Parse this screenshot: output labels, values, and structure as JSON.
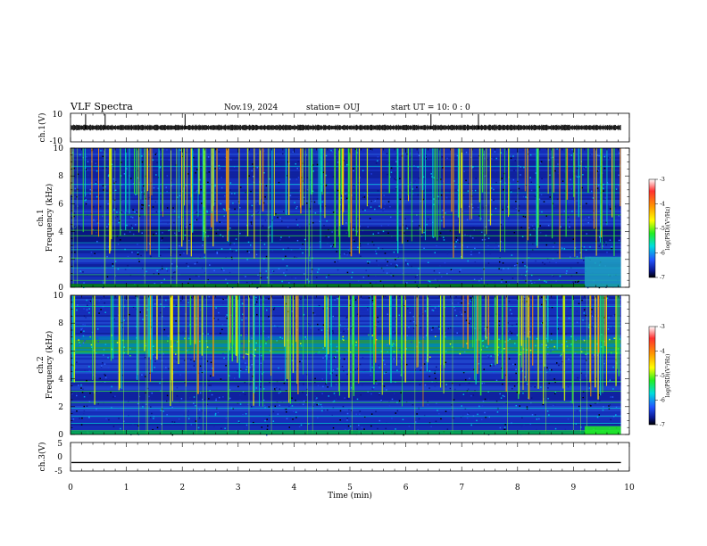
{
  "header": {
    "title": "VLF Spectra",
    "date": "Nov.19, 2024",
    "station": "station= OUJ",
    "start": "start  UT  =   10: 0  : 0"
  },
  "chart_data": [
    {
      "id": "ch1-waveform",
      "type": "line",
      "ylabel": "ch.1(V)",
      "ylim": [
        -10,
        10
      ],
      "yticks": [
        "10",
        "-10"
      ],
      "baseline": 0,
      "spike_times_min": [
        0.27,
        0.62,
        2.05,
        6.45,
        7.3
      ]
    },
    {
      "id": "ch1-spectrogram",
      "type": "heatmap",
      "channel": "ch.1",
      "ylabel": "Frequency  (kHz)",
      "ylim": [
        0,
        10
      ],
      "yticks": [
        "0",
        "2",
        "4",
        "6",
        "8",
        "10"
      ],
      "colorbar": {
        "min": -7,
        "max": -3,
        "ticks": [
          "-3",
          "-4",
          "-5",
          "-6",
          "-7"
        ],
        "label": "log(PSD)(V²/Hz)"
      }
    },
    {
      "id": "ch2-spectrogram",
      "type": "heatmap",
      "channel": "ch.2",
      "ylabel": "Frequency  (kHz)",
      "ylim": [
        0,
        10
      ],
      "yticks": [
        "0",
        "2",
        "4",
        "6",
        "8",
        "10"
      ],
      "colorbar": {
        "min": -7,
        "max": -3,
        "ticks": [
          "-3",
          "-4",
          "-5",
          "-6",
          "-7"
        ],
        "label": "log(PSD)(V²/Hz)"
      }
    },
    {
      "id": "ch3-waveform",
      "type": "line",
      "ylabel": "ch.3(V)",
      "ylim": [
        -5,
        5
      ],
      "yticks": [
        "5",
        "0",
        "-5"
      ],
      "level": -2
    }
  ],
  "xaxis": {
    "label": "Time  (min)",
    "range": [
      0,
      10
    ],
    "ticks": [
      "0",
      "1",
      "2",
      "3",
      "4",
      "5",
      "6",
      "7",
      "8",
      "9",
      "10"
    ],
    "data_end_min": 9.85
  },
  "colors": {
    "axis": "#000000",
    "trace": "#000000",
    "spec_background": "#0b1a8a"
  }
}
